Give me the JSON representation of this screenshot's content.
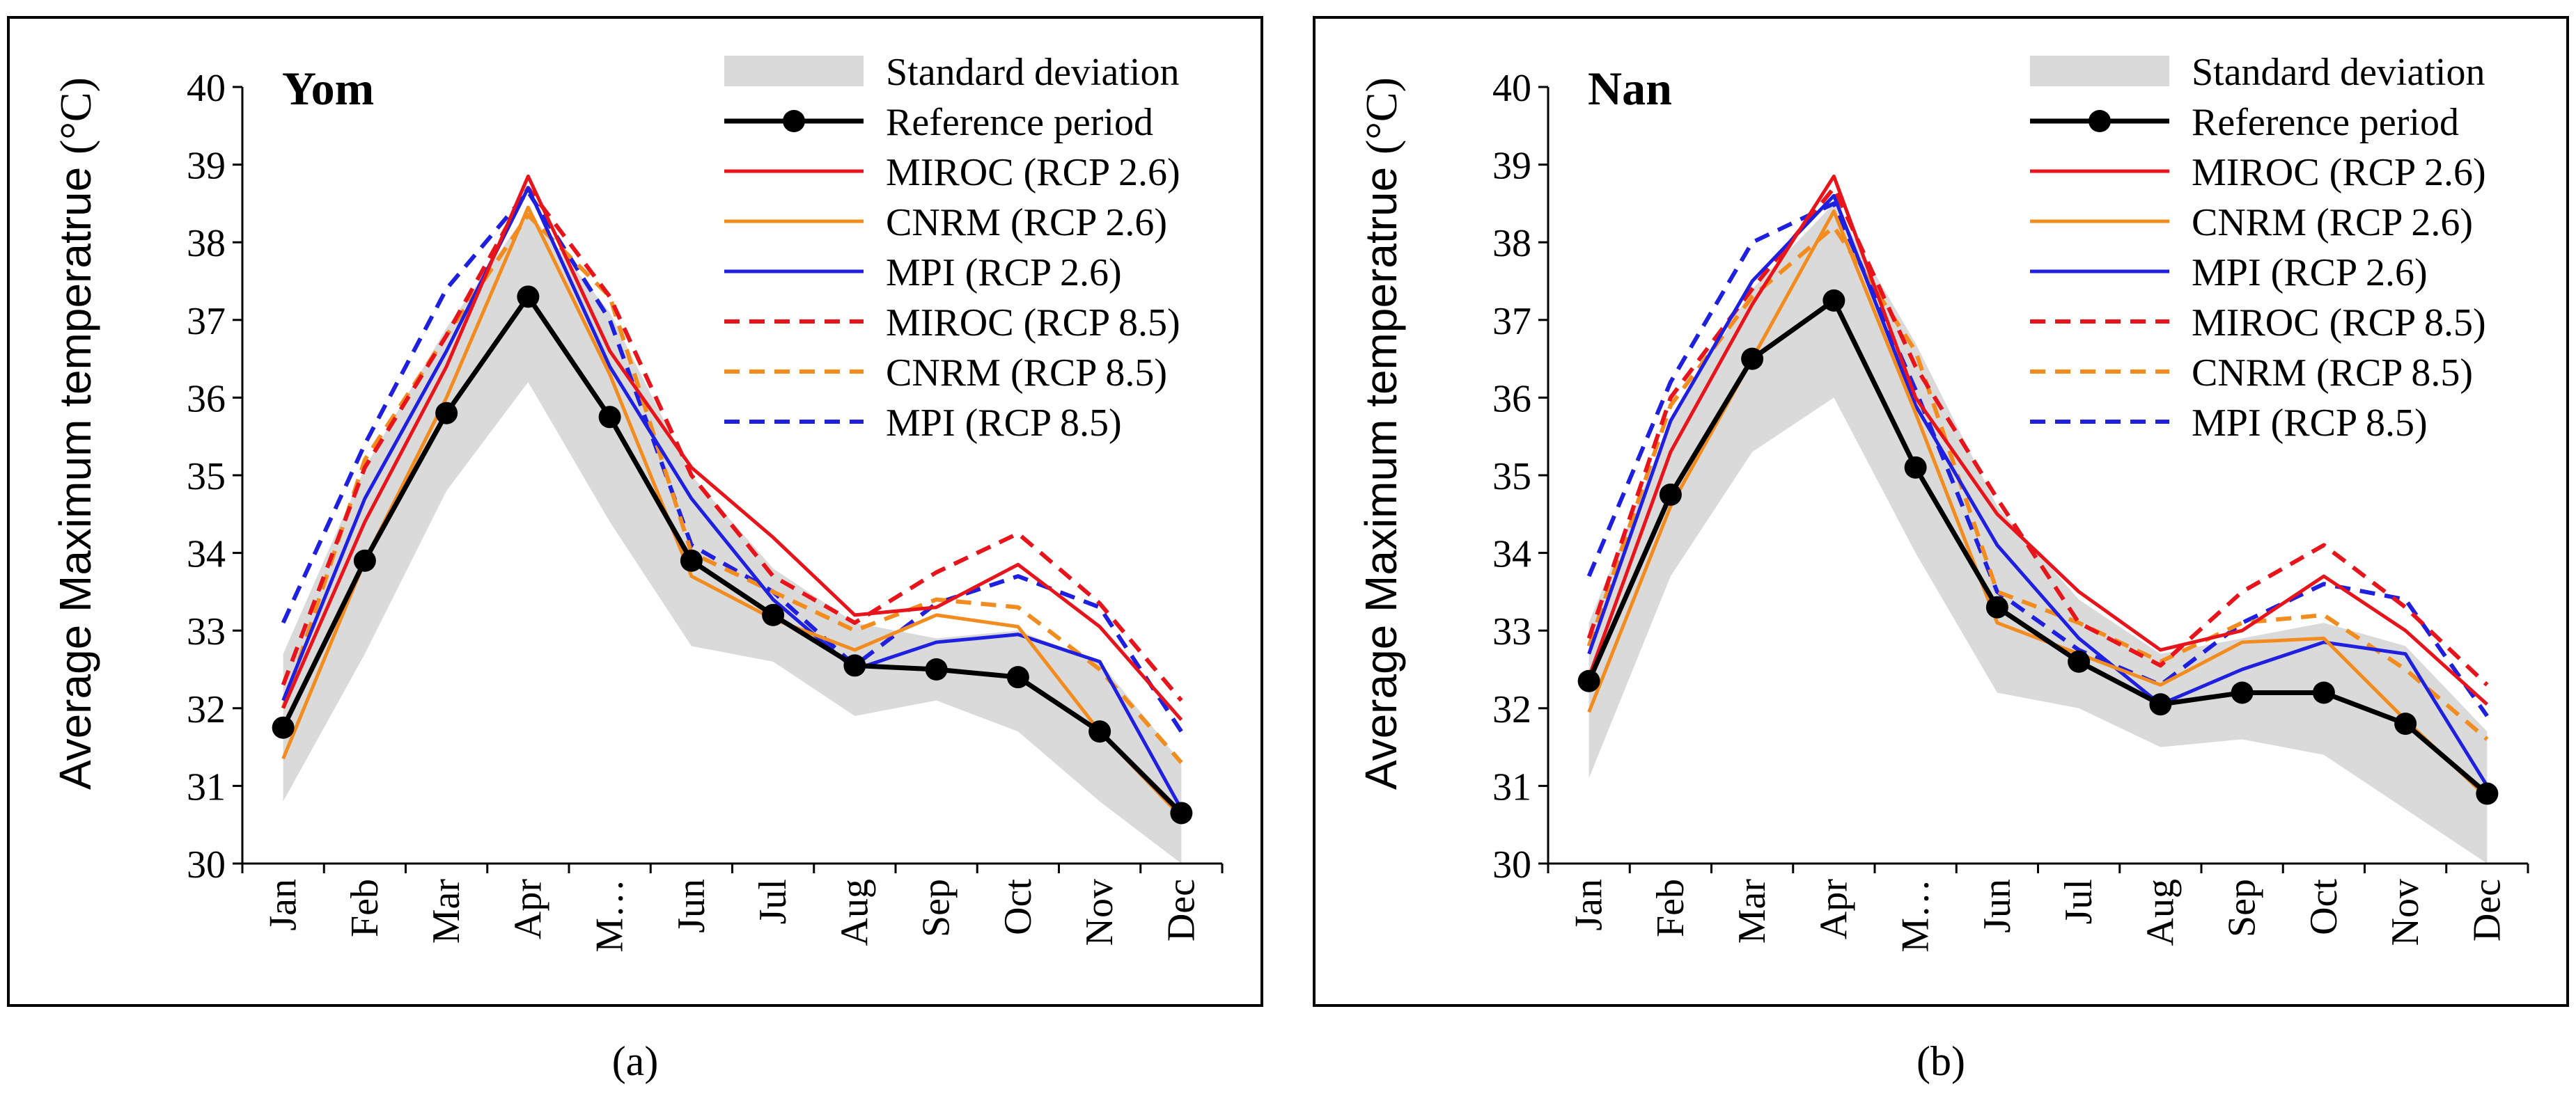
{
  "figure": {
    "legend_labels": {
      "std": "Standard deviation",
      "reference": "Reference period",
      "miroc26": "MIROC (RCP 2.6)",
      "cnrm26": "CNRM (RCP 2.6)",
      "mpi26": "MPI (RCP 2.6)",
      "miroc85": "MIROC (RCP 8.5)",
      "cnrm85": "CNRM (RCP 8.5)",
      "mpi85": "MPI (RCP 8.5)"
    },
    "colors": {
      "reference": "#000000",
      "miroc": "#e8141b",
      "cnrm": "#f28c1e",
      "mpi": "#1f1fe0",
      "std_fill": "#dadada"
    }
  },
  "chart_data": [
    {
      "type": "line",
      "title": "Yom",
      "caption": "(a)",
      "ylabel": "Average Maximum temperatrue (°C)",
      "ylabel_part1": "Average Maximum temperatrue ",
      "ylabel_part2": "(°C)",
      "xlabel": "",
      "ylim": [
        30,
        40
      ],
      "yticks": [
        "30",
        "31",
        "32",
        "33",
        "34",
        "35",
        "36",
        "37",
        "38",
        "39",
        "40"
      ],
      "categories": [
        "Jan",
        "Feb",
        "Mar",
        "Apr",
        "M…",
        "Jun",
        "Jul",
        "Aug",
        "Sep",
        "Oct",
        "Nov",
        "Dec"
      ],
      "std_band": {
        "lower": [
          30.8,
          32.7,
          34.8,
          36.2,
          34.4,
          32.8,
          32.6,
          31.9,
          32.1,
          31.7,
          30.8,
          30.0
        ],
        "upper": [
          32.7,
          35.1,
          36.9,
          38.4,
          37.1,
          35.0,
          33.8,
          33.1,
          32.9,
          33.0,
          32.6,
          31.3
        ]
      },
      "series": [
        {
          "key": "reference",
          "name": "Reference period",
          "values": [
            31.75,
            33.9,
            35.8,
            37.3,
            35.75,
            33.9,
            33.2,
            32.55,
            32.5,
            32.4,
            31.7,
            30.65
          ]
        },
        {
          "key": "miroc26",
          "name": "MIROC (RCP 2.6)",
          "values": [
            32.0,
            34.4,
            36.4,
            38.85,
            36.6,
            35.1,
            34.2,
            33.2,
            33.3,
            33.85,
            33.05,
            31.85
          ]
        },
        {
          "key": "cnrm26",
          "name": "CNRM (RCP 2.6)",
          "values": [
            31.35,
            33.9,
            36.0,
            38.45,
            36.3,
            33.7,
            33.15,
            32.75,
            33.2,
            33.05,
            31.7,
            30.6
          ]
        },
        {
          "key": "mpi26",
          "name": "MPI (RCP 2.6)",
          "values": [
            32.1,
            34.7,
            36.6,
            38.7,
            36.4,
            34.7,
            33.4,
            32.5,
            32.85,
            32.95,
            32.6,
            30.7
          ]
        },
        {
          "key": "miroc85",
          "name": "MIROC (RCP 8.5)",
          "values": [
            32.3,
            35.1,
            36.8,
            38.7,
            37.3,
            35.0,
            33.7,
            33.1,
            33.75,
            34.25,
            33.35,
            32.1
          ]
        },
        {
          "key": "cnrm85",
          "name": "CNRM (RCP 8.5)",
          "values": [
            32.0,
            35.2,
            36.8,
            38.35,
            37.3,
            34.0,
            33.5,
            33.0,
            33.4,
            33.3,
            32.5,
            31.3
          ]
        },
        {
          "key": "mpi85",
          "name": "MPI (RCP 8.5)",
          "values": [
            33.1,
            35.4,
            37.4,
            38.65,
            37.0,
            34.1,
            33.5,
            32.55,
            33.35,
            33.7,
            33.3,
            31.7
          ]
        }
      ]
    },
    {
      "type": "line",
      "title": "Nan",
      "caption": "(b)",
      "ylabel": "Average Maximum temperatrue (°C)",
      "ylabel_part1": "Average Maximum temperatrue ",
      "ylabel_part2": "(°C)",
      "xlabel": "",
      "ylim": [
        30,
        40
      ],
      "yticks": [
        "30",
        "31",
        "32",
        "33",
        "34",
        "35",
        "36",
        "37",
        "38",
        "39",
        "40"
      ],
      "categories": [
        "Jan",
        "Feb",
        "Mar",
        "Apr",
        "M…",
        "Jun",
        "Jul",
        "Aug",
        "Sep",
        "Oct",
        "Nov",
        "Dec"
      ],
      "std_band": {
        "lower": [
          31.1,
          33.7,
          35.3,
          36.0,
          34.0,
          32.2,
          32.0,
          31.5,
          31.6,
          31.4,
          30.7,
          30.0
        ],
        "upper": [
          33.1,
          35.7,
          37.4,
          38.5,
          36.7,
          34.6,
          33.4,
          32.7,
          32.9,
          33.1,
          32.8,
          31.7
        ]
      },
      "series": [
        {
          "key": "reference",
          "name": "Reference period",
          "values": [
            32.35,
            34.75,
            36.5,
            37.25,
            35.1,
            33.3,
            32.6,
            32.05,
            32.2,
            32.2,
            31.8,
            30.9
          ]
        },
        {
          "key": "miroc26",
          "name": "MIROC (RCP 2.6)",
          "values": [
            32.4,
            35.3,
            37.2,
            38.85,
            36.0,
            34.5,
            33.5,
            32.75,
            33.0,
            33.7,
            33.0,
            32.05
          ]
        },
        {
          "key": "cnrm26",
          "name": "CNRM (RCP 2.6)",
          "values": [
            31.95,
            34.6,
            36.5,
            38.4,
            35.8,
            33.1,
            32.7,
            32.3,
            32.85,
            32.9,
            31.85,
            30.85
          ]
        },
        {
          "key": "mpi26",
          "name": "MPI (RCP 2.6)",
          "values": [
            32.7,
            35.7,
            37.5,
            38.6,
            35.9,
            34.1,
            32.9,
            32.05,
            32.5,
            32.85,
            32.7,
            31.0
          ]
        },
        {
          "key": "miroc85",
          "name": "MIROC (RCP 8.5)",
          "values": [
            32.9,
            36.0,
            37.4,
            38.7,
            36.4,
            34.7,
            33.1,
            32.55,
            33.5,
            34.1,
            33.3,
            32.3
          ]
        },
        {
          "key": "cnrm85",
          "name": "CNRM (RCP 8.5)",
          "values": [
            32.8,
            35.9,
            37.3,
            38.2,
            36.6,
            33.5,
            33.1,
            32.6,
            33.1,
            33.2,
            32.5,
            31.6
          ]
        },
        {
          "key": "mpi85",
          "name": "MPI (RCP 8.5)",
          "values": [
            33.7,
            36.2,
            38.0,
            38.5,
            36.1,
            33.5,
            32.75,
            32.3,
            33.1,
            33.6,
            33.4,
            31.9
          ]
        }
      ]
    }
  ]
}
